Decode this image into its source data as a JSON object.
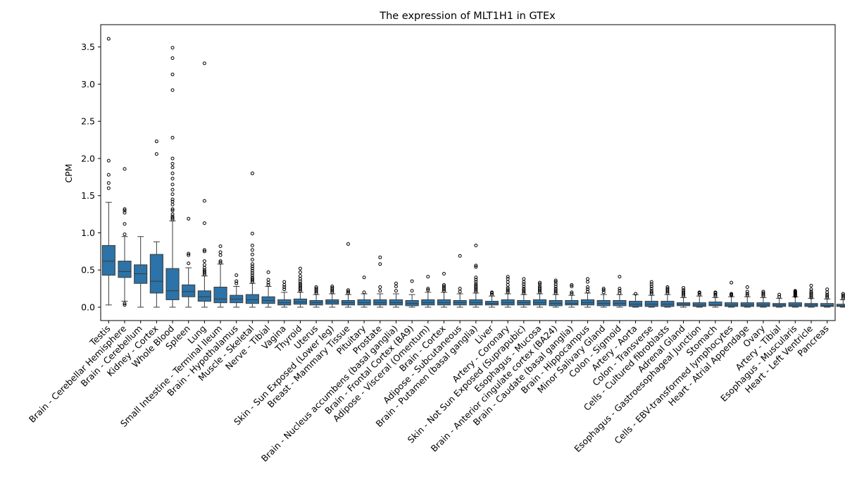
{
  "chart_data": {
    "type": "box",
    "title": "The expression of MLT1H1 in GTEx",
    "xlabel": "",
    "ylabel": "CPM",
    "ylim": [
      -0.18,
      3.8
    ],
    "yticks": [
      0.0,
      0.5,
      1.0,
      1.5,
      2.0,
      2.5,
      3.0,
      3.5
    ],
    "ytick_labels": [
      "0.0",
      "0.5",
      "1.0",
      "1.5",
      "2.0",
      "2.5",
      "3.0",
      "3.5"
    ],
    "grid": false,
    "box_color": "#2b73a8",
    "categories": [
      "Testis",
      "Brain - Cerebellar Hemisphere",
      "Brain - Cerebellum",
      "Kidney - Cortex",
      "Whole Blood",
      "Spleen",
      "Lung",
      "Small Intestine - Terminal Ileum",
      "Brain - Hypothalamus",
      "Muscle - Skeletal",
      "Nerve - Tibial",
      "Vagina",
      "Thyroid",
      "Uterus",
      "Skin - Sun Exposed (Lower leg)",
      "Breast - Mammary Tissue",
      "Pituitary",
      "Prostate",
      "Brain - Nucleus accumbens (basal ganglia)",
      "Brain - Frontal Cortex (BA9)",
      "Adipose - Visceral (Omentum)",
      "Brain - Cortex",
      "Adipose - Subcutaneous",
      "Brain - Putamen (basal ganglia)",
      "Liver",
      "Artery - Coronary",
      "Skin - Not Sun Exposed (Suprapubic)",
      "Esophagus - Mucosa",
      "Brain - Anterior cingulate cortex (BA24)",
      "Brain - Caudate (basal ganglia)",
      "Brain - Hippocampus",
      "Minor Salivary Gland",
      "Colon - Sigmoid",
      "Artery - Aorta",
      "Colon - Transverse",
      "Cells - Cultured fibroblasts",
      "Adrenal Gland",
      "Esophagus - Gastroesophageal Junction",
      "Stomach",
      "Cells - EBV-transformed lymphocytes",
      "Heart - Atrial Appendage",
      "Ovary",
      "Artery - Tibial",
      "Esophagus - Muscularis",
      "Heart - Left Ventricle",
      "Pancreas"
    ],
    "boxes": [
      {
        "whislo": 0.03,
        "q1": 0.43,
        "med": 0.62,
        "q3": 0.83,
        "whishi": 1.41,
        "fliers": [
          1.6,
          1.67,
          1.78,
          1.97,
          3.61
        ]
      },
      {
        "whislo": 0.08,
        "q1": 0.4,
        "med": 0.48,
        "q3": 0.62,
        "whishi": 0.95,
        "fliers": [
          0.03,
          0.05,
          0.98,
          1.12,
          1.27,
          1.3,
          1.32,
          1.86
        ]
      },
      {
        "whislo": 0.0,
        "q1": 0.32,
        "med": 0.45,
        "q3": 0.57,
        "whishi": 0.95,
        "fliers": []
      },
      {
        "whislo": 0.0,
        "q1": 0.19,
        "med": 0.35,
        "q3": 0.71,
        "whishi": 0.88,
        "fliers": [
          2.06,
          2.23
        ]
      },
      {
        "whislo": 0.0,
        "q1": 0.1,
        "med": 0.22,
        "q3": 0.52,
        "whishi": 1.16,
        "fliers": [
          1.18,
          1.2,
          1.22,
          1.25,
          1.3,
          1.32,
          1.38,
          1.42,
          1.45,
          1.52,
          1.58,
          1.65,
          1.73,
          1.8,
          1.88,
          1.93,
          2.0,
          2.28,
          2.92,
          3.13,
          3.35,
          3.49
        ]
      },
      {
        "whislo": 0.0,
        "q1": 0.14,
        "med": 0.21,
        "q3": 0.3,
        "whishi": 0.53,
        "fliers": [
          0.59,
          0.7,
          0.72,
          1.19
        ]
      },
      {
        "whislo": 0.0,
        "q1": 0.08,
        "med": 0.14,
        "q3": 0.22,
        "whishi": 0.42,
        "fliers": [
          0.44,
          0.46,
          0.48,
          0.5,
          0.53,
          0.57,
          0.62,
          0.75,
          0.77,
          1.13,
          1.43,
          3.28
        ]
      },
      {
        "whislo": 0.0,
        "q1": 0.06,
        "med": 0.11,
        "q3": 0.27,
        "whishi": 0.58,
        "fliers": [
          0.6,
          0.62,
          0.7,
          0.74,
          0.82
        ]
      },
      {
        "whislo": 0.0,
        "q1": 0.06,
        "med": 0.11,
        "q3": 0.16,
        "whishi": 0.28,
        "fliers": [
          0.32,
          0.35,
          0.43
        ]
      },
      {
        "whislo": 0.0,
        "q1": 0.05,
        "med": 0.1,
        "q3": 0.17,
        "whishi": 0.32,
        "fliers": [
          0.34,
          0.36,
          0.38,
          0.4,
          0.43,
          0.46,
          0.49,
          0.52,
          0.55,
          0.58,
          0.64,
          0.71,
          0.77,
          0.83,
          0.99,
          1.8
        ]
      },
      {
        "whislo": 0.0,
        "q1": 0.05,
        "med": 0.09,
        "q3": 0.14,
        "whishi": 0.28,
        "fliers": [
          0.3,
          0.33,
          0.37,
          0.47
        ]
      },
      {
        "whislo": 0.0,
        "q1": 0.03,
        "med": 0.06,
        "q3": 0.1,
        "whishi": 0.2,
        "fliers": [
          0.24,
          0.27,
          0.3,
          0.34
        ]
      },
      {
        "whislo": 0.0,
        "q1": 0.04,
        "med": 0.07,
        "q3": 0.11,
        "whishi": 0.2,
        "fliers": [
          0.22,
          0.24,
          0.26,
          0.28,
          0.3,
          0.32,
          0.35,
          0.38,
          0.42,
          0.47,
          0.52
        ]
      },
      {
        "whislo": 0.0,
        "q1": 0.03,
        "med": 0.06,
        "q3": 0.09,
        "whishi": 0.17,
        "fliers": [
          0.19,
          0.21,
          0.23,
          0.25,
          0.27
        ]
      },
      {
        "whislo": 0.0,
        "q1": 0.04,
        "med": 0.07,
        "q3": 0.1,
        "whishi": 0.18,
        "fliers": [
          0.2,
          0.22,
          0.24,
          0.26,
          0.28
        ]
      },
      {
        "whislo": 0.0,
        "q1": 0.03,
        "med": 0.06,
        "q3": 0.09,
        "whishi": 0.17,
        "fliers": [
          0.19,
          0.21,
          0.23,
          0.85
        ]
      },
      {
        "whislo": 0.0,
        "q1": 0.03,
        "med": 0.06,
        "q3": 0.1,
        "whishi": 0.18,
        "fliers": [
          0.2,
          0.4
        ]
      },
      {
        "whislo": 0.0,
        "q1": 0.03,
        "med": 0.06,
        "q3": 0.1,
        "whishi": 0.18,
        "fliers": [
          0.22,
          0.27,
          0.58,
          0.67
        ]
      },
      {
        "whislo": 0.0,
        "q1": 0.03,
        "med": 0.06,
        "q3": 0.1,
        "whishi": 0.18,
        "fliers": [
          0.22,
          0.28,
          0.32
        ]
      },
      {
        "whislo": 0.0,
        "q1": 0.02,
        "med": 0.05,
        "q3": 0.09,
        "whishi": 0.17,
        "fliers": [
          0.22,
          0.35
        ]
      },
      {
        "whislo": 0.0,
        "q1": 0.03,
        "med": 0.06,
        "q3": 0.1,
        "whishi": 0.2,
        "fliers": [
          0.23,
          0.25,
          0.41
        ]
      },
      {
        "whislo": 0.0,
        "q1": 0.03,
        "med": 0.06,
        "q3": 0.1,
        "whishi": 0.2,
        "fliers": [
          0.22,
          0.24,
          0.26,
          0.28,
          0.3,
          0.45
        ]
      },
      {
        "whislo": 0.0,
        "q1": 0.03,
        "med": 0.06,
        "q3": 0.09,
        "whishi": 0.18,
        "fliers": [
          0.21,
          0.25,
          0.69
        ]
      },
      {
        "whislo": 0.0,
        "q1": 0.03,
        "med": 0.06,
        "q3": 0.1,
        "whishi": 0.19,
        "fliers": [
          0.21,
          0.23,
          0.25,
          0.27,
          0.29,
          0.31,
          0.34,
          0.37,
          0.4,
          0.54,
          0.56,
          0.83
        ]
      },
      {
        "whislo": 0.0,
        "q1": 0.03,
        "med": 0.05,
        "q3": 0.08,
        "whishi": 0.15,
        "fliers": [
          0.17,
          0.19,
          0.2
        ]
      },
      {
        "whislo": 0.0,
        "q1": 0.03,
        "med": 0.06,
        "q3": 0.1,
        "whishi": 0.18,
        "fliers": [
          0.2,
          0.22,
          0.24,
          0.26,
          0.3,
          0.34,
          0.38,
          0.41
        ]
      },
      {
        "whislo": 0.0,
        "q1": 0.03,
        "med": 0.06,
        "q3": 0.09,
        "whishi": 0.17,
        "fliers": [
          0.19,
          0.21,
          0.23,
          0.25,
          0.28,
          0.31,
          0.34,
          0.38
        ]
      },
      {
        "whislo": 0.0,
        "q1": 0.03,
        "med": 0.06,
        "q3": 0.1,
        "whishi": 0.18,
        "fliers": [
          0.2,
          0.22,
          0.24,
          0.26,
          0.28,
          0.31,
          0.33
        ]
      },
      {
        "whislo": 0.0,
        "q1": 0.02,
        "med": 0.05,
        "q3": 0.09,
        "whishi": 0.17,
        "fliers": [
          0.19,
          0.21,
          0.23,
          0.25,
          0.28,
          0.31,
          0.34,
          0.36
        ]
      },
      {
        "whislo": 0.0,
        "q1": 0.03,
        "med": 0.05,
        "q3": 0.09,
        "whishi": 0.16,
        "fliers": [
          0.18,
          0.2,
          0.28,
          0.3
        ]
      },
      {
        "whislo": 0.0,
        "q1": 0.03,
        "med": 0.06,
        "q3": 0.1,
        "whishi": 0.19,
        "fliers": [
          0.21,
          0.24,
          0.27,
          0.34,
          0.38
        ]
      },
      {
        "whislo": 0.0,
        "q1": 0.02,
        "med": 0.05,
        "q3": 0.09,
        "whishi": 0.17,
        "fliers": [
          0.2,
          0.23,
          0.25
        ]
      },
      {
        "whislo": 0.0,
        "q1": 0.02,
        "med": 0.05,
        "q3": 0.09,
        "whishi": 0.17,
        "fliers": [
          0.19,
          0.22,
          0.25,
          0.41
        ]
      },
      {
        "whislo": 0.0,
        "q1": 0.01,
        "med": 0.04,
        "q3": 0.08,
        "whishi": 0.17,
        "fliers": [
          0.18
        ]
      },
      {
        "whislo": 0.0,
        "q1": 0.01,
        "med": 0.04,
        "q3": 0.08,
        "whishi": 0.16,
        "fliers": [
          0.18,
          0.2,
          0.22,
          0.25,
          0.28,
          0.31,
          0.34
        ]
      },
      {
        "whislo": 0.0,
        "q1": 0.01,
        "med": 0.04,
        "q3": 0.08,
        "whishi": 0.17,
        "fliers": [
          0.19,
          0.21,
          0.23,
          0.25,
          0.27
        ]
      },
      {
        "whislo": 0.0,
        "q1": 0.02,
        "med": 0.04,
        "q3": 0.06,
        "whishi": 0.13,
        "fliers": [
          0.15,
          0.17,
          0.19,
          0.21,
          0.23,
          0.26
        ]
      },
      {
        "whislo": 0.0,
        "q1": 0.01,
        "med": 0.03,
        "q3": 0.06,
        "whishi": 0.15,
        "fliers": [
          0.17,
          0.19,
          0.2
        ]
      },
      {
        "whislo": 0.0,
        "q1": 0.02,
        "med": 0.03,
        "q3": 0.07,
        "whishi": 0.13,
        "fliers": [
          0.15,
          0.17,
          0.19,
          0.2
        ]
      },
      {
        "whislo": 0.0,
        "q1": 0.01,
        "med": 0.03,
        "q3": 0.06,
        "whishi": 0.14,
        "fliers": [
          0.16,
          0.17,
          0.18,
          0.33
        ]
      },
      {
        "whislo": 0.0,
        "q1": 0.01,
        "med": 0.03,
        "q3": 0.06,
        "whishi": 0.14,
        "fliers": [
          0.16,
          0.18,
          0.21,
          0.27
        ]
      },
      {
        "whislo": 0.0,
        "q1": 0.01,
        "med": 0.03,
        "q3": 0.06,
        "whishi": 0.13,
        "fliers": [
          0.15,
          0.17,
          0.19,
          0.21
        ]
      },
      {
        "whislo": 0.0,
        "q1": 0.01,
        "med": 0.03,
        "q3": 0.05,
        "whishi": 0.12,
        "fliers": [
          0.14,
          0.17
        ]
      },
      {
        "whislo": 0.0,
        "q1": 0.01,
        "med": 0.03,
        "q3": 0.06,
        "whishi": 0.14,
        "fliers": [
          0.15,
          0.16,
          0.17,
          0.18,
          0.19,
          0.2,
          0.21,
          0.22
        ]
      },
      {
        "whislo": 0.0,
        "q1": 0.01,
        "med": 0.03,
        "q3": 0.05,
        "whishi": 0.12,
        "fliers": [
          0.13,
          0.15,
          0.17,
          0.19,
          0.21,
          0.24,
          0.29
        ]
      },
      {
        "whislo": 0.0,
        "q1": 0.01,
        "med": 0.02,
        "q3": 0.05,
        "whishi": 0.11,
        "fliers": [
          0.13,
          0.15,
          0.17,
          0.2,
          0.24
        ]
      },
      {
        "whislo": 0.0,
        "q1": 0.01,
        "med": 0.02,
        "q3": 0.04,
        "whishi": 0.1,
        "fliers": [
          0.12,
          0.14,
          0.16,
          0.18
        ]
      }
    ]
  }
}
